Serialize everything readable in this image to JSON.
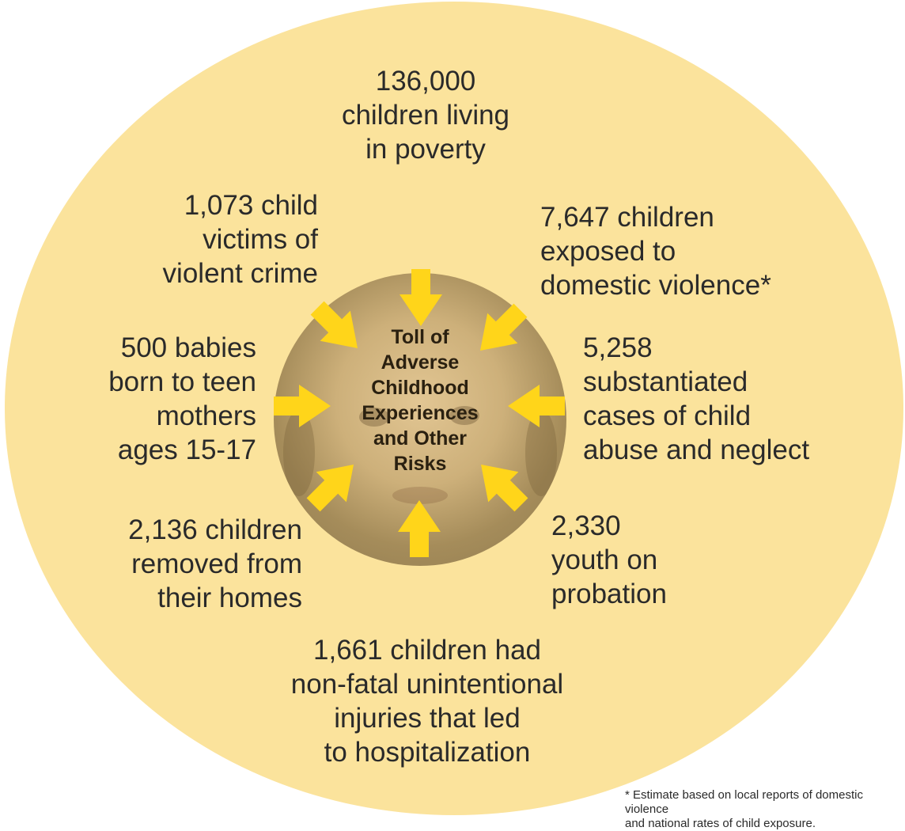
{
  "center_title": "Toll of\nAdverse\nChildhood\nExperiences\nand Other\nRisks",
  "items": [
    {
      "id": "poverty",
      "text": "136,000\nchildren living\nin poverty"
    },
    {
      "id": "domestic-violence",
      "text": "7,647 children\nexposed to\ndomestic violence*"
    },
    {
      "id": "abuse-neglect",
      "text": "5,258\nsubstantiated\ncases of child\nabuse and neglect"
    },
    {
      "id": "probation",
      "text": "2,330\nyouth on\nprobation"
    },
    {
      "id": "injuries",
      "text": "1,661 children had\nnon-fatal unintentional\ninjuries that led\nto hospitalization"
    },
    {
      "id": "removed",
      "text": "2,136 children\nremoved from\ntheir homes"
    },
    {
      "id": "teen-mothers",
      "text": "500 babies\nborn to teen\nmothers\nages 15-17"
    },
    {
      "id": "violent-crime",
      "text": "1,073 child\nvictims of\nviolent crime"
    }
  ],
  "footnote": "* Estimate based on local reports of domestic violence\nand national rates of child exposure.",
  "colors": {
    "outer_circle": "#fbe39c",
    "arrow": "#ffd51a",
    "text": "#2a2a2a"
  }
}
